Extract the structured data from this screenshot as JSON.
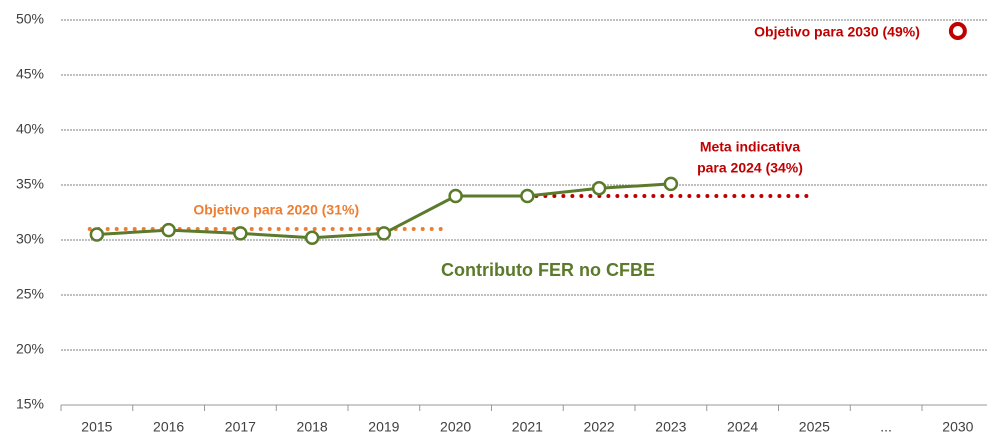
{
  "chart_data": {
    "type": "line",
    "categories": [
      "2015",
      "2016",
      "2017",
      "2018",
      "2019",
      "2020",
      "2021",
      "2022",
      "2023",
      "2024",
      "2025",
      "...",
      "2030"
    ],
    "series": [
      {
        "name": "Contributo FER no CFBE",
        "color": "#5b7a2b",
        "values": [
          30.5,
          30.9,
          30.6,
          30.2,
          30.6,
          34.0,
          34.0,
          34.7,
          35.1,
          null,
          null,
          null,
          null
        ]
      }
    ],
    "targets": [
      {
        "label": "Objetivo para 2020 (31%)",
        "value": 31,
        "color": "#ed7d31"
      },
      {
        "label": [
          "Meta indicativa",
          "para 2024 (34%)"
        ],
        "value": 34,
        "color": "#c00000"
      },
      {
        "label": "Objetivo para 2030 (49%)",
        "value": 49,
        "color": "#c00000"
      }
    ],
    "ylim": [
      15,
      50
    ],
    "yticks": [
      {
        "value": 15,
        "label": "15%"
      },
      {
        "value": 20,
        "label": "20%"
      },
      {
        "value": 25,
        "label": "25%"
      },
      {
        "value": 30,
        "label": "30%"
      },
      {
        "value": 35,
        "label": "35%"
      },
      {
        "value": 40,
        "label": "40%"
      },
      {
        "value": 45,
        "label": "45%"
      },
      {
        "value": 50,
        "label": "50%"
      }
    ],
    "grid": true
  }
}
